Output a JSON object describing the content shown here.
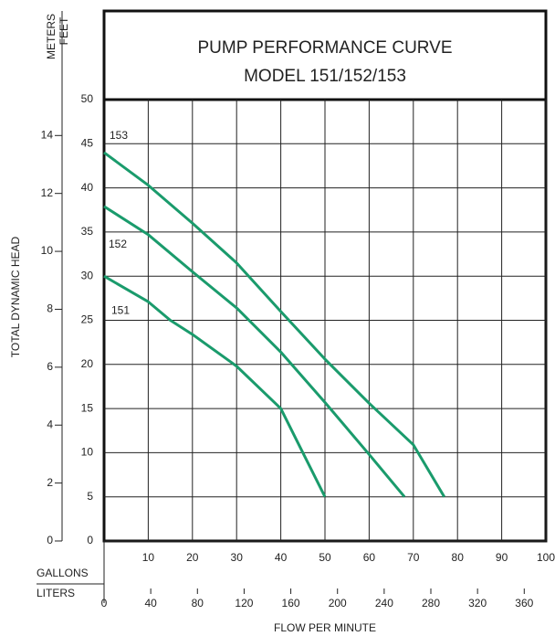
{
  "chart_data": {
    "type": "line",
    "title": "PUMP PERFORMANCE CURVE",
    "subtitle": "MODEL 151/152/153",
    "ylabel": "TOTAL DYNAMIC HEAD",
    "y_unit": "FEET",
    "y2_unit": "METERS",
    "xlabel": "FLOW PER MINUTE",
    "x_unit": "GALLONS",
    "x2_unit": "LITERS",
    "xlim": [
      0,
      100
    ],
    "xticks": [
      10,
      20,
      30,
      40,
      50,
      60,
      70,
      80,
      90,
      100
    ],
    "x2lim": [
      0,
      378.54
    ],
    "x2ticks": [
      0,
      40,
      80,
      120,
      160,
      200,
      240,
      280,
      320,
      360
    ],
    "ylim": [
      0,
      50
    ],
    "yticks": [
      0,
      5,
      10,
      15,
      20,
      25,
      30,
      35,
      40,
      45,
      50
    ],
    "y2lim": [
      0,
      15.24
    ],
    "y2ticks": [
      0,
      2,
      4,
      6,
      8,
      10,
      12,
      14
    ],
    "grid": true,
    "series": [
      {
        "name": "153",
        "color": "#1a9b6c",
        "x": [
          0,
          10,
          20,
          30,
          40,
          50,
          60,
          70,
          77
        ],
        "values": [
          44,
          40.3,
          36,
          31.5,
          26,
          20.6,
          15.6,
          10.9,
          5
        ]
      },
      {
        "name": "152",
        "color": "#1a9b6c",
        "x": [
          0,
          10,
          20,
          30,
          40,
          50,
          60,
          68
        ],
        "values": [
          37.9,
          34.7,
          30.5,
          26.4,
          21.4,
          15.7,
          9.8,
          5
        ]
      },
      {
        "name": "151",
        "color": "#1a9b6c",
        "x": [
          0,
          10,
          15,
          20,
          30,
          40,
          45,
          50
        ],
        "values": [
          30,
          27.1,
          25,
          23.4,
          19.8,
          15,
          10,
          5
        ]
      }
    ]
  }
}
